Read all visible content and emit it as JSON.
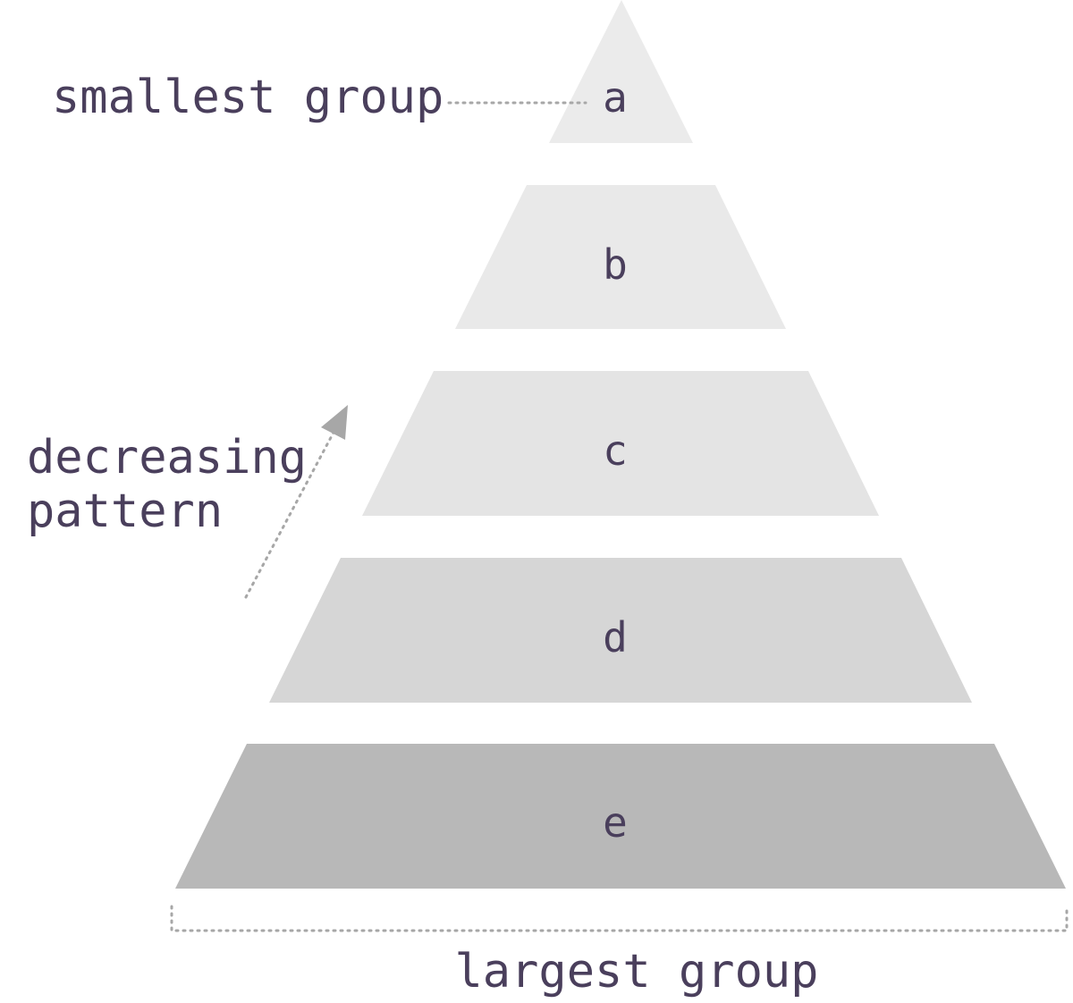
{
  "tiers": [
    {
      "label": "a",
      "color": "#ebebeb"
    },
    {
      "label": "b",
      "color": "#e9e9e9"
    },
    {
      "label": "c",
      "color": "#e4e4e4"
    },
    {
      "label": "d",
      "color": "#d6d6d6"
    },
    {
      "label": "e",
      "color": "#b8b8b8"
    }
  ],
  "annotations": {
    "smallest": "smallest group",
    "decreasing_line1": "decreasing",
    "decreasing_line2": "pattern",
    "largest": "largest group"
  },
  "colors": {
    "text": "#4a3f5c",
    "dotted": "#a7a7a7",
    "arrow": "#a7a7a7"
  }
}
